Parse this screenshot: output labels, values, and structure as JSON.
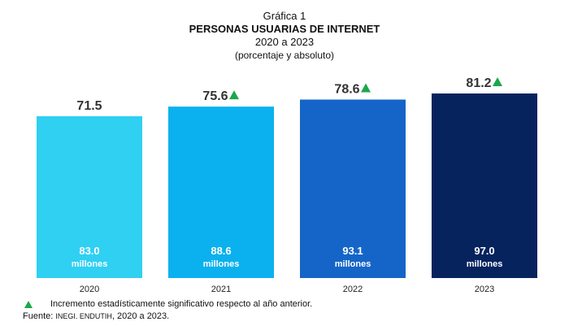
{
  "header": {
    "label": "Gráfica 1",
    "title": "PERSONAS USUARIAS DE INTERNET",
    "years": "2020 a 2023",
    "subtitle": "(porcentaje y absoluto)"
  },
  "chart_data": {
    "type": "bar",
    "title": "PERSONAS USUARIAS DE INTERNET",
    "categories": [
      "2020",
      "2021",
      "2022",
      "2023"
    ],
    "series": [
      {
        "values": [
          71.5,
          75.6,
          78.6,
          81.2
        ]
      }
    ],
    "inner_values": [
      "83.0",
      "88.6",
      "93.1",
      "97.0"
    ],
    "inner_unit": "millones",
    "significant_increase": [
      false,
      true,
      true,
      true
    ],
    "colors": [
      "#2fd0f2",
      "#0bb1ee",
      "#1565c8",
      "#06235e"
    ],
    "marker_color": "#1aa84b",
    "ylim": [
      0,
      100
    ],
    "grid": false
  },
  "footer": {
    "note": "Incremento estadísticamente significativo respecto al año anterior.",
    "source_label": "Fuente: ",
    "source_value": "INEGI. ENDUTIH",
    "source_years": ", 2020 a 2023."
  }
}
